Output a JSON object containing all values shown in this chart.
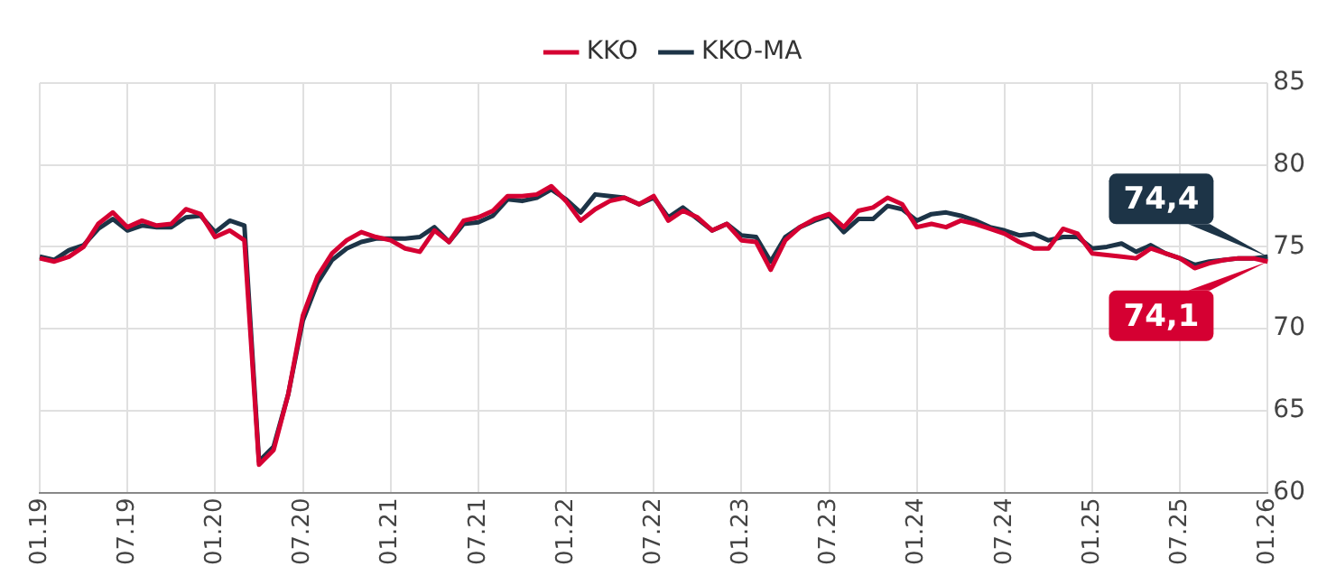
{
  "chart_data": {
    "type": "line",
    "categories": [
      "01.19",
      null,
      null,
      null,
      null,
      null,
      "07.19",
      null,
      null,
      null,
      null,
      null,
      "01.20",
      null,
      null,
      null,
      null,
      null,
      "07.20",
      null,
      null,
      null,
      null,
      null,
      "01.21",
      null,
      null,
      null,
      null,
      null,
      "07.21",
      null,
      null,
      null,
      null,
      null,
      "01.22",
      null,
      null,
      null,
      null,
      null,
      "07.22",
      null,
      null,
      null,
      null,
      null,
      "01.23",
      null,
      null,
      null,
      null,
      null,
      "07.23",
      null,
      null,
      null,
      null,
      null,
      "01.24",
      null,
      null,
      null,
      null,
      null,
      "07.24",
      null,
      null,
      null,
      null,
      null,
      "01.25",
      null,
      null,
      null,
      null,
      null,
      "07.25",
      null,
      null,
      null,
      null,
      null,
      "01.26"
    ],
    "series": [
      {
        "name": "KKO",
        "color": "#d50032",
        "values": [
          74.3,
          74.1,
          74.4,
          75.0,
          76.4,
          77.1,
          76.2,
          76.6,
          76.3,
          76.4,
          77.3,
          77.0,
          75.6,
          76.0,
          75.4,
          61.7,
          62.6,
          66.0,
          70.8,
          73.2,
          74.6,
          75.4,
          75.9,
          75.6,
          75.4,
          74.9,
          74.7,
          76.0,
          75.3,
          76.6,
          76.8,
          77.2,
          78.1,
          78.1,
          78.2,
          78.7,
          77.8,
          76.6,
          77.3,
          77.8,
          78.0,
          77.6,
          78.1,
          76.6,
          77.2,
          76.8,
          76.0,
          76.4,
          75.4,
          75.3,
          73.6,
          75.4,
          76.2,
          76.7,
          77.0,
          76.2,
          77.2,
          77.4,
          78.0,
          77.6,
          76.2,
          76.4,
          76.2,
          76.6,
          76.4,
          76.1,
          75.8,
          75.3,
          74.9,
          74.9,
          76.1,
          75.8,
          74.6,
          74.5,
          74.4,
          74.3,
          74.9,
          74.6,
          74.3,
          73.7,
          74.0,
          74.2,
          74.3,
          74.3,
          74.1
        ]
      },
      {
        "name": "KKO-MA",
        "color": "#1d3447",
        "values": [
          74.4,
          74.2,
          74.8,
          75.1,
          76.1,
          76.7,
          76.0,
          76.3,
          76.2,
          76.2,
          76.8,
          76.9,
          75.9,
          76.6,
          76.3,
          61.9,
          62.8,
          66.0,
          70.5,
          72.8,
          74.2,
          74.9,
          75.3,
          75.5,
          75.5,
          75.5,
          75.6,
          76.2,
          75.3,
          76.4,
          76.5,
          76.9,
          77.9,
          77.8,
          78.0,
          78.5,
          77.9,
          77.1,
          78.2,
          78.1,
          78.0,
          77.6,
          78.0,
          76.8,
          77.4,
          76.7,
          76.0,
          76.4,
          75.7,
          75.6,
          74.1,
          75.6,
          76.2,
          76.6,
          76.9,
          75.9,
          76.7,
          76.7,
          77.5,
          77.3,
          76.6,
          77.0,
          77.1,
          76.9,
          76.6,
          76.2,
          76.0,
          75.7,
          75.8,
          75.4,
          75.6,
          75.6,
          74.9,
          75.0,
          75.2,
          74.7,
          75.1,
          74.6,
          74.3,
          73.9,
          74.1,
          74.2,
          74.3,
          74.3,
          74.4
        ]
      }
    ],
    "annotations": [
      {
        "text": "74,1",
        "x": "01.26",
        "y": 74.1
      },
      {
        "text": "74,4",
        "x": "01.26",
        "y": 74.4
      }
    ],
    "ylim": [
      60,
      85
    ],
    "yticks": [
      60,
      65,
      70,
      75,
      80,
      85
    ],
    "grid": true,
    "legend": "top",
    "marker": "none",
    "line_style": "solid"
  }
}
